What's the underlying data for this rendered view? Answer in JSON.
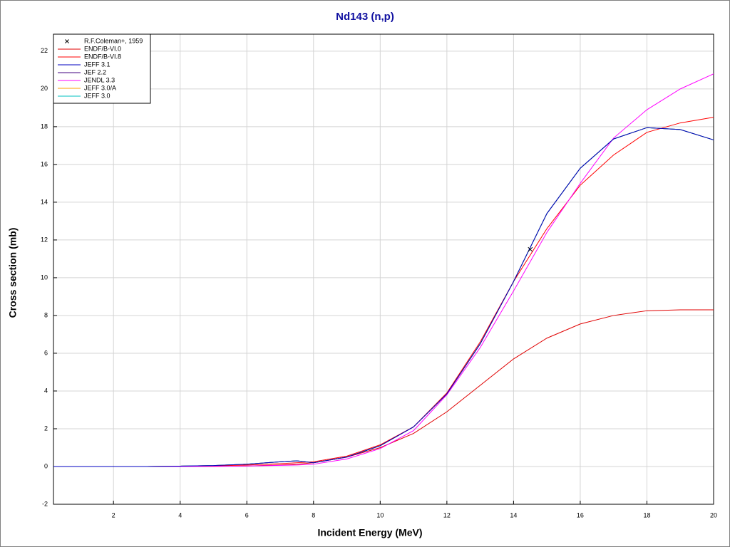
{
  "chart_data": {
    "type": "line",
    "title": "Nd143 (n,p)",
    "x_label": "Incident Energy (MeV)",
    "y_label": "Cross section (mb)",
    "xlim": [
      0.2,
      20
    ],
    "ylim": [
      -2,
      22.9
    ],
    "xticks": [
      2,
      4,
      6,
      8,
      10,
      12,
      14,
      16,
      18,
      20
    ],
    "yticks": [
      -2,
      0,
      2,
      4,
      6,
      8,
      10,
      12,
      14,
      16,
      18,
      20,
      22
    ],
    "grid": true,
    "legend": "upper-left",
    "points": {
      "name": "R.F.Coleman+, 1959",
      "color": "#000000",
      "x": [
        14.5
      ],
      "y": [
        11.5
      ]
    },
    "x": [
      0.2,
      1,
      2,
      3,
      4,
      5,
      6,
      7,
      7.5,
      8,
      9,
      10,
      11,
      12,
      13,
      14,
      15,
      16,
      17,
      18,
      19,
      20
    ],
    "series": [
      {
        "name": "ENDF/B-VI.0",
        "color": "#e00000",
        "values": [
          0,
          0,
          0,
          0,
          0,
          0.01,
          0.03,
          0.08,
          0.12,
          0.2,
          0.5,
          1.0,
          1.75,
          2.9,
          4.3,
          5.7,
          6.8,
          7.55,
          8.0,
          8.25,
          8.3,
          8.3
        ]
      },
      {
        "name": "ENDF/B-VI.8",
        "color": "#ff0000",
        "values": [
          0,
          0,
          0,
          0,
          0.01,
          0.03,
          0.08,
          0.15,
          0.2,
          0.25,
          0.55,
          1.15,
          2.1,
          3.9,
          6.6,
          9.8,
          12.6,
          14.9,
          16.5,
          17.7,
          18.2,
          18.5
        ]
      },
      {
        "name": "JEFF 3.1",
        "color": "#0000c0",
        "values": [
          0,
          0,
          0,
          0,
          0.02,
          0.05,
          0.12,
          0.25,
          0.3,
          0.2,
          0.5,
          1.1,
          2.1,
          3.85,
          6.5,
          9.8,
          13.4,
          15.8,
          17.35,
          17.95,
          17.85,
          17.3
        ]
      },
      {
        "name": "JEF 2.2",
        "color": "#400080",
        "values": [
          0,
          0,
          0,
          0,
          0.02,
          0.05,
          0.12,
          0.25,
          0.3,
          0.2,
          0.5,
          1.1,
          2.1,
          3.85,
          6.5,
          9.8,
          13.4,
          15.8,
          17.35,
          17.95,
          17.85,
          17.3
        ]
      },
      {
        "name": "JENDL 3.3",
        "color": "#ff00ff",
        "values": [
          0,
          0,
          0,
          0,
          0,
          0.01,
          0.03,
          0.06,
          0.08,
          0.12,
          0.4,
          0.95,
          1.9,
          3.8,
          6.3,
          9.3,
          12.4,
          15.0,
          17.4,
          18.9,
          20.0,
          20.8
        ]
      },
      {
        "name": "JEFF 3.0/A",
        "color": "#ffa000",
        "values": [
          0,
          0,
          0,
          0,
          0.02,
          0.05,
          0.12,
          0.25,
          0.3,
          0.2,
          0.5,
          1.1,
          2.1,
          3.85,
          6.5,
          9.8,
          13.4,
          15.8,
          17.35,
          17.95,
          17.85,
          17.3
        ]
      },
      {
        "name": "JEFF 3.0",
        "color": "#00c0c0",
        "values": [
          0,
          0,
          0,
          0,
          0.02,
          0.05,
          0.12,
          0.25,
          0.3,
          0.2,
          0.5,
          1.1,
          2.1,
          3.85,
          6.5,
          9.8,
          13.4,
          15.8,
          17.35,
          17.95,
          17.85,
          17.3
        ]
      }
    ]
  }
}
